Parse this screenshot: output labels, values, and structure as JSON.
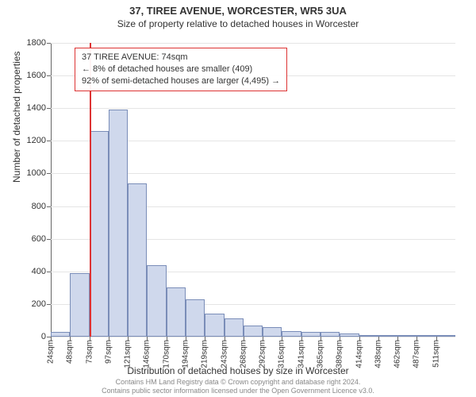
{
  "title": {
    "line1": "37, TIREE AVENUE, WORCESTER, WR5 3UA",
    "line2": "Size of property relative to detached houses in Worcester"
  },
  "chart": {
    "type": "histogram",
    "ylabel": "Number of detached properties",
    "xlabel": "Distribution of detached houses by size in Worcester",
    "ylim": [
      0,
      1800
    ],
    "ytick_step": 200,
    "yticks": [
      0,
      200,
      400,
      600,
      800,
      1000,
      1200,
      1400,
      1600,
      1800
    ],
    "xtick_labels": [
      "24sqm",
      "48sqm",
      "73sqm",
      "97sqm",
      "121sqm",
      "146sqm",
      "170sqm",
      "194sqm",
      "219sqm",
      "243sqm",
      "268sqm",
      "292sqm",
      "316sqm",
      "341sqm",
      "365sqm",
      "389sqm",
      "414sqm",
      "438sqm",
      "462sqm",
      "487sqm",
      "511sqm"
    ],
    "bar_values": [
      30,
      390,
      1260,
      1390,
      940,
      440,
      300,
      230,
      140,
      110,
      70,
      60,
      35,
      30,
      30,
      20,
      10,
      8,
      5,
      5,
      3
    ],
    "bar_fill": "#cfd8ec",
    "bar_border": "#7a8db8",
    "grid_color": "#e5e5e5",
    "background": "#ffffff",
    "marker": {
      "bin_index": 2,
      "color": "#d33"
    }
  },
  "callout": {
    "line1": "37 TIREE AVENUE: 74sqm",
    "line2": "← 8% of detached houses are smaller (409)",
    "line3": "92% of semi-detached houses are larger (4,495) →"
  },
  "attribution": {
    "line1": "Contains HM Land Registry data © Crown copyright and database right 2024.",
    "line2": "Contains public sector information licensed under the Open Government Licence v3.0."
  }
}
